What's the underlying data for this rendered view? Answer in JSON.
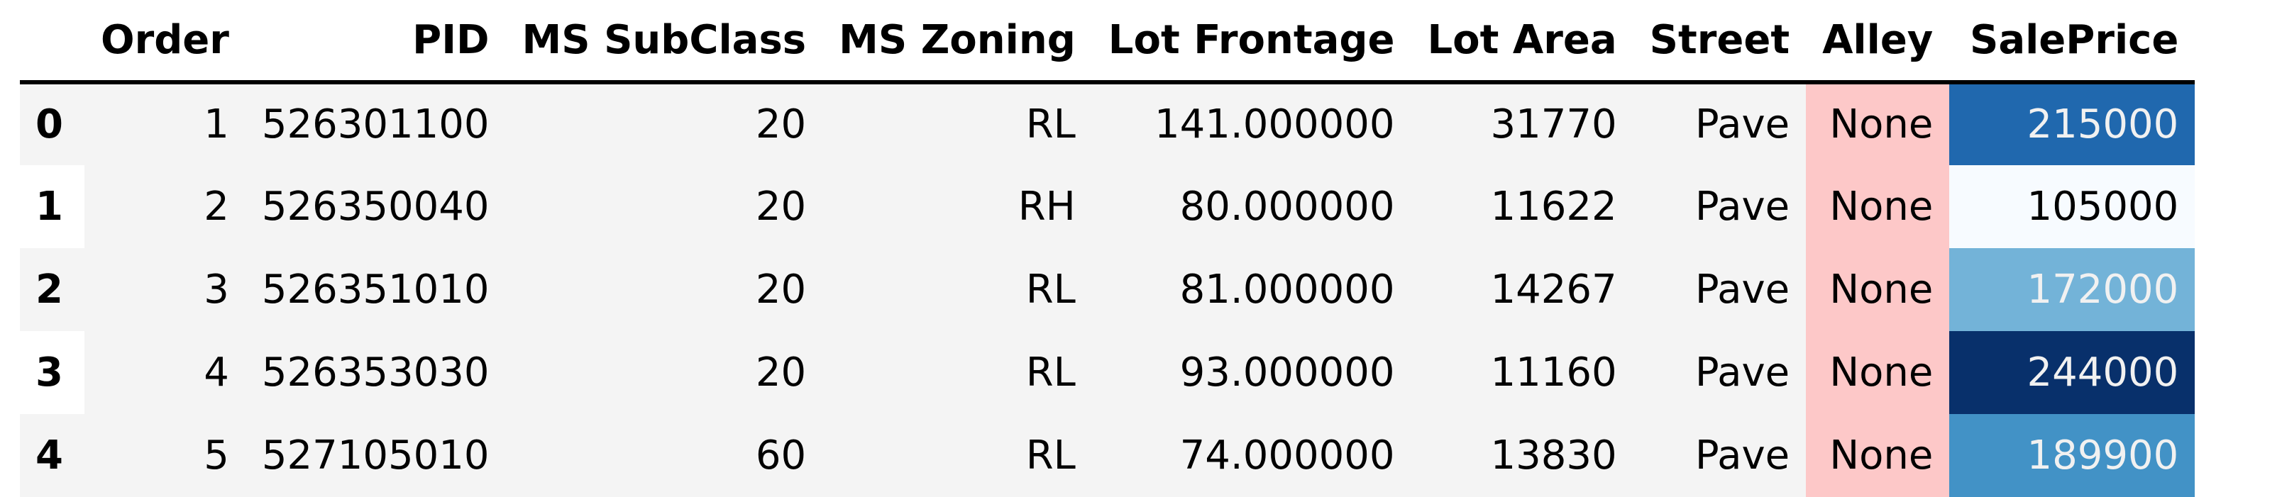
{
  "table": {
    "columns": [
      "",
      "Order",
      "PID",
      "MS SubClass",
      "MS Zoning",
      "Lot Frontage",
      "Lot Area",
      "Street",
      "Alley",
      "SalePrice"
    ],
    "rows": [
      {
        "index": "0",
        "order": "1",
        "pid": "526301100",
        "ms_subclass": "20",
        "ms_zoning": "RL",
        "lot_frontage": "141.000000",
        "lot_area": "31770",
        "street": "Pave",
        "alley": "None",
        "saleprice": "215000",
        "price_bg": "#2068ae",
        "price_fg": "#f1f1f1"
      },
      {
        "index": "1",
        "order": "2",
        "pid": "526350040",
        "ms_subclass": "20",
        "ms_zoning": "RH",
        "lot_frontage": "80.000000",
        "lot_area": "11622",
        "street": "Pave",
        "alley": "None",
        "saleprice": "105000",
        "price_bg": "#f7fbff",
        "price_fg": "#000000"
      },
      {
        "index": "2",
        "order": "3",
        "pid": "526351010",
        "ms_subclass": "20",
        "ms_zoning": "RL",
        "lot_frontage": "81.000000",
        "lot_area": "14267",
        "street": "Pave",
        "alley": "None",
        "saleprice": "172000",
        "price_bg": "#73b3d8",
        "price_fg": "#f1f1f1"
      },
      {
        "index": "3",
        "order": "4",
        "pid": "526353030",
        "ms_subclass": "20",
        "ms_zoning": "RL",
        "lot_frontage": "93.000000",
        "lot_area": "11160",
        "street": "Pave",
        "alley": "None",
        "saleprice": "244000",
        "price_bg": "#08306b",
        "price_fg": "#f1f1f1"
      },
      {
        "index": "4",
        "order": "5",
        "pid": "527105010",
        "ms_subclass": "60",
        "ms_zoning": "RL",
        "lot_frontage": "74.000000",
        "lot_area": "13830",
        "street": "Pave",
        "alley": "None",
        "saleprice": "189900",
        "price_bg": "#4292c6",
        "price_fg": "#f1f1f1"
      }
    ]
  },
  "colors": {
    "alley_highlight": "#fdc8c8",
    "row_stripe": "#f4f4f4"
  }
}
